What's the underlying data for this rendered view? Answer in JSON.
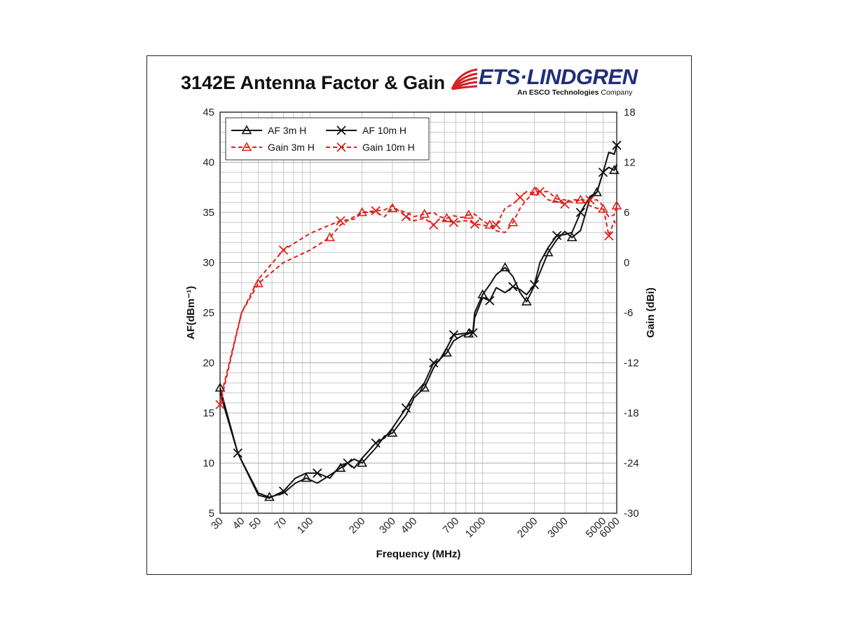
{
  "header": {
    "title": "3142E Antenna Factor & Gain",
    "logo_text": "ETS·LINDGREN",
    "logo_sub_bold": "An ESCO Technologies",
    "logo_sub": " Company",
    "logo_reg": "®"
  },
  "colors": {
    "af": "#111111",
    "gain": "#e0201c",
    "grid": "#c8c8c8",
    "logo": "#1e2f7a",
    "logo_red": "#d42027"
  },
  "chart_data": {
    "type": "line",
    "xlabel": "Frequency (MHz)",
    "ylabel": "AF(dBm⁻¹)",
    "ylabel2": "Gain (dBi)",
    "x_scale": "log",
    "xlim": [
      30,
      6000
    ],
    "ylim": [
      5,
      45
    ],
    "y2lim": [
      -30,
      18
    ],
    "yticks": [
      5,
      10,
      15,
      20,
      25,
      30,
      35,
      40,
      45
    ],
    "y2ticks": [
      -30,
      -24,
      -18,
      -12,
      -6,
      0,
      6,
      12,
      18
    ],
    "xticks": [
      30,
      40,
      50,
      70,
      100,
      200,
      300,
      400,
      700,
      1000,
      2000,
      3000,
      5000,
      6000
    ],
    "xticklabels": [
      "30",
      "40",
      "50",
      "70",
      "100",
      "200",
      "300",
      "400",
      "700",
      "1000",
      "2000",
      "3000",
      "5000",
      "6000"
    ],
    "grid": true,
    "legend": "top-left",
    "series": [
      {
        "name": "AF 3m H",
        "axis": "left",
        "color": "af",
        "dash": "solid",
        "marker": "triangle",
        "x": [
          30,
          38,
          50,
          58,
          70,
          82,
          95,
          110,
          130,
          150,
          165,
          180,
          200,
          240,
          270,
          300,
          360,
          400,
          460,
          520,
          560,
          620,
          680,
          760,
          830,
          880,
          900,
          1000,
          1100,
          1200,
          1350,
          1500,
          1650,
          1800,
          2000,
          2150,
          2400,
          2700,
          3000,
          3300,
          3700,
          4200,
          4600,
          5000,
          5400,
          5800,
          6000
        ],
        "y": [
          17.5,
          11,
          7,
          6.6,
          7,
          8,
          8.5,
          8,
          8.8,
          9.5,
          10,
          10.4,
          10,
          11.5,
          12.7,
          13,
          14.8,
          16.5,
          17.5,
          19.5,
          20.3,
          21,
          22.2,
          22.7,
          22.9,
          23.2,
          25,
          26.8,
          27.8,
          28.8,
          29.5,
          28.6,
          27,
          26.1,
          27.7,
          29,
          31,
          32.3,
          33.1,
          32.5,
          33.2,
          36.4,
          37,
          39,
          39.5,
          39.2,
          39.8
        ]
      },
      {
        "name": "AF 10m H",
        "axis": "left",
        "color": "af",
        "dash": "solid",
        "marker": "x",
        "x": [
          30,
          38,
          50,
          58,
          70,
          82,
          95,
          110,
          130,
          150,
          165,
          180,
          200,
          240,
          270,
          300,
          360,
          400,
          460,
          520,
          560,
          620,
          680,
          760,
          830,
          880,
          900,
          1000,
          1100,
          1200,
          1350,
          1500,
          1650,
          1800,
          2000,
          2150,
          2400,
          2700,
          3000,
          3300,
          3700,
          4200,
          4600,
          5000,
          5400,
          5800,
          6000
        ],
        "y": [
          17,
          11,
          6.8,
          6.5,
          7.2,
          8.5,
          9,
          9,
          8.5,
          9.8,
          10,
          9.5,
          10.5,
          12,
          12.5,
          13.5,
          15.5,
          16.8,
          18,
          20,
          20.2,
          21.5,
          22.8,
          22.9,
          23,
          23,
          24.5,
          26.5,
          26.2,
          27.5,
          27,
          27.6,
          27.3,
          26.8,
          27.8,
          30,
          31.5,
          32.7,
          32.8,
          33,
          35,
          36.6,
          37,
          39,
          41,
          40.8,
          41.7
        ]
      },
      {
        "name": "Gain 3m H",
        "axis": "right",
        "color": "gain",
        "dash": "dashed",
        "marker": "triangle",
        "x": [
          30,
          40,
          50,
          70,
          100,
          130,
          150,
          180,
          200,
          240,
          270,
          300,
          360,
          400,
          460,
          520,
          560,
          620,
          680,
          760,
          830,
          900,
          1000,
          1100,
          1200,
          1350,
          1500,
          1650,
          1800,
          2000,
          2150,
          2400,
          2700,
          3000,
          3300,
          3700,
          4200,
          4600,
          5000,
          5400,
          5800,
          6000
        ],
        "y": [
          -16.5,
          -6,
          -2.5,
          0,
          1.5,
          3,
          4.5,
          5.5,
          6,
          6,
          5.5,
          6.5,
          6,
          5.5,
          5.8,
          6,
          5.5,
          5.3,
          5.6,
          5.4,
          5.7,
          5.8,
          5,
          4.5,
          3.8,
          3.6,
          4.8,
          6.5,
          7.5,
          8.5,
          8.5,
          8.5,
          7.6,
          7.5,
          7.2,
          7.5,
          6.8,
          6.5,
          6.4,
          5.5,
          5.7,
          6.8
        ]
      },
      {
        "name": "Gain 10m H",
        "axis": "right",
        "color": "gain",
        "dash": "dashed",
        "marker": "x",
        "x": [
          30,
          40,
          50,
          70,
          100,
          130,
          150,
          180,
          200,
          240,
          270,
          300,
          360,
          400,
          460,
          520,
          560,
          620,
          680,
          760,
          830,
          900,
          1000,
          1100,
          1200,
          1350,
          1500,
          1650,
          1800,
          2000,
          2150,
          2400,
          2700,
          3000,
          3300,
          3700,
          4200,
          4600,
          5000,
          5400,
          5800,
          6000
        ],
        "y": [
          -17,
          -6,
          -2,
          1.5,
          3.5,
          4.5,
          5,
          5.2,
          6,
          6.2,
          6.3,
          6.8,
          5.5,
          5,
          5.3,
          4.5,
          5.2,
          5,
          4.8,
          5,
          5,
          4.6,
          4.5,
          4.3,
          4.5,
          6.5,
          7,
          7.8,
          8.5,
          8.3,
          8.5,
          7.5,
          7.3,
          7,
          7.5,
          7.5,
          7.5,
          7.5,
          6.8,
          3.2,
          5,
          4.3
        ]
      }
    ]
  }
}
